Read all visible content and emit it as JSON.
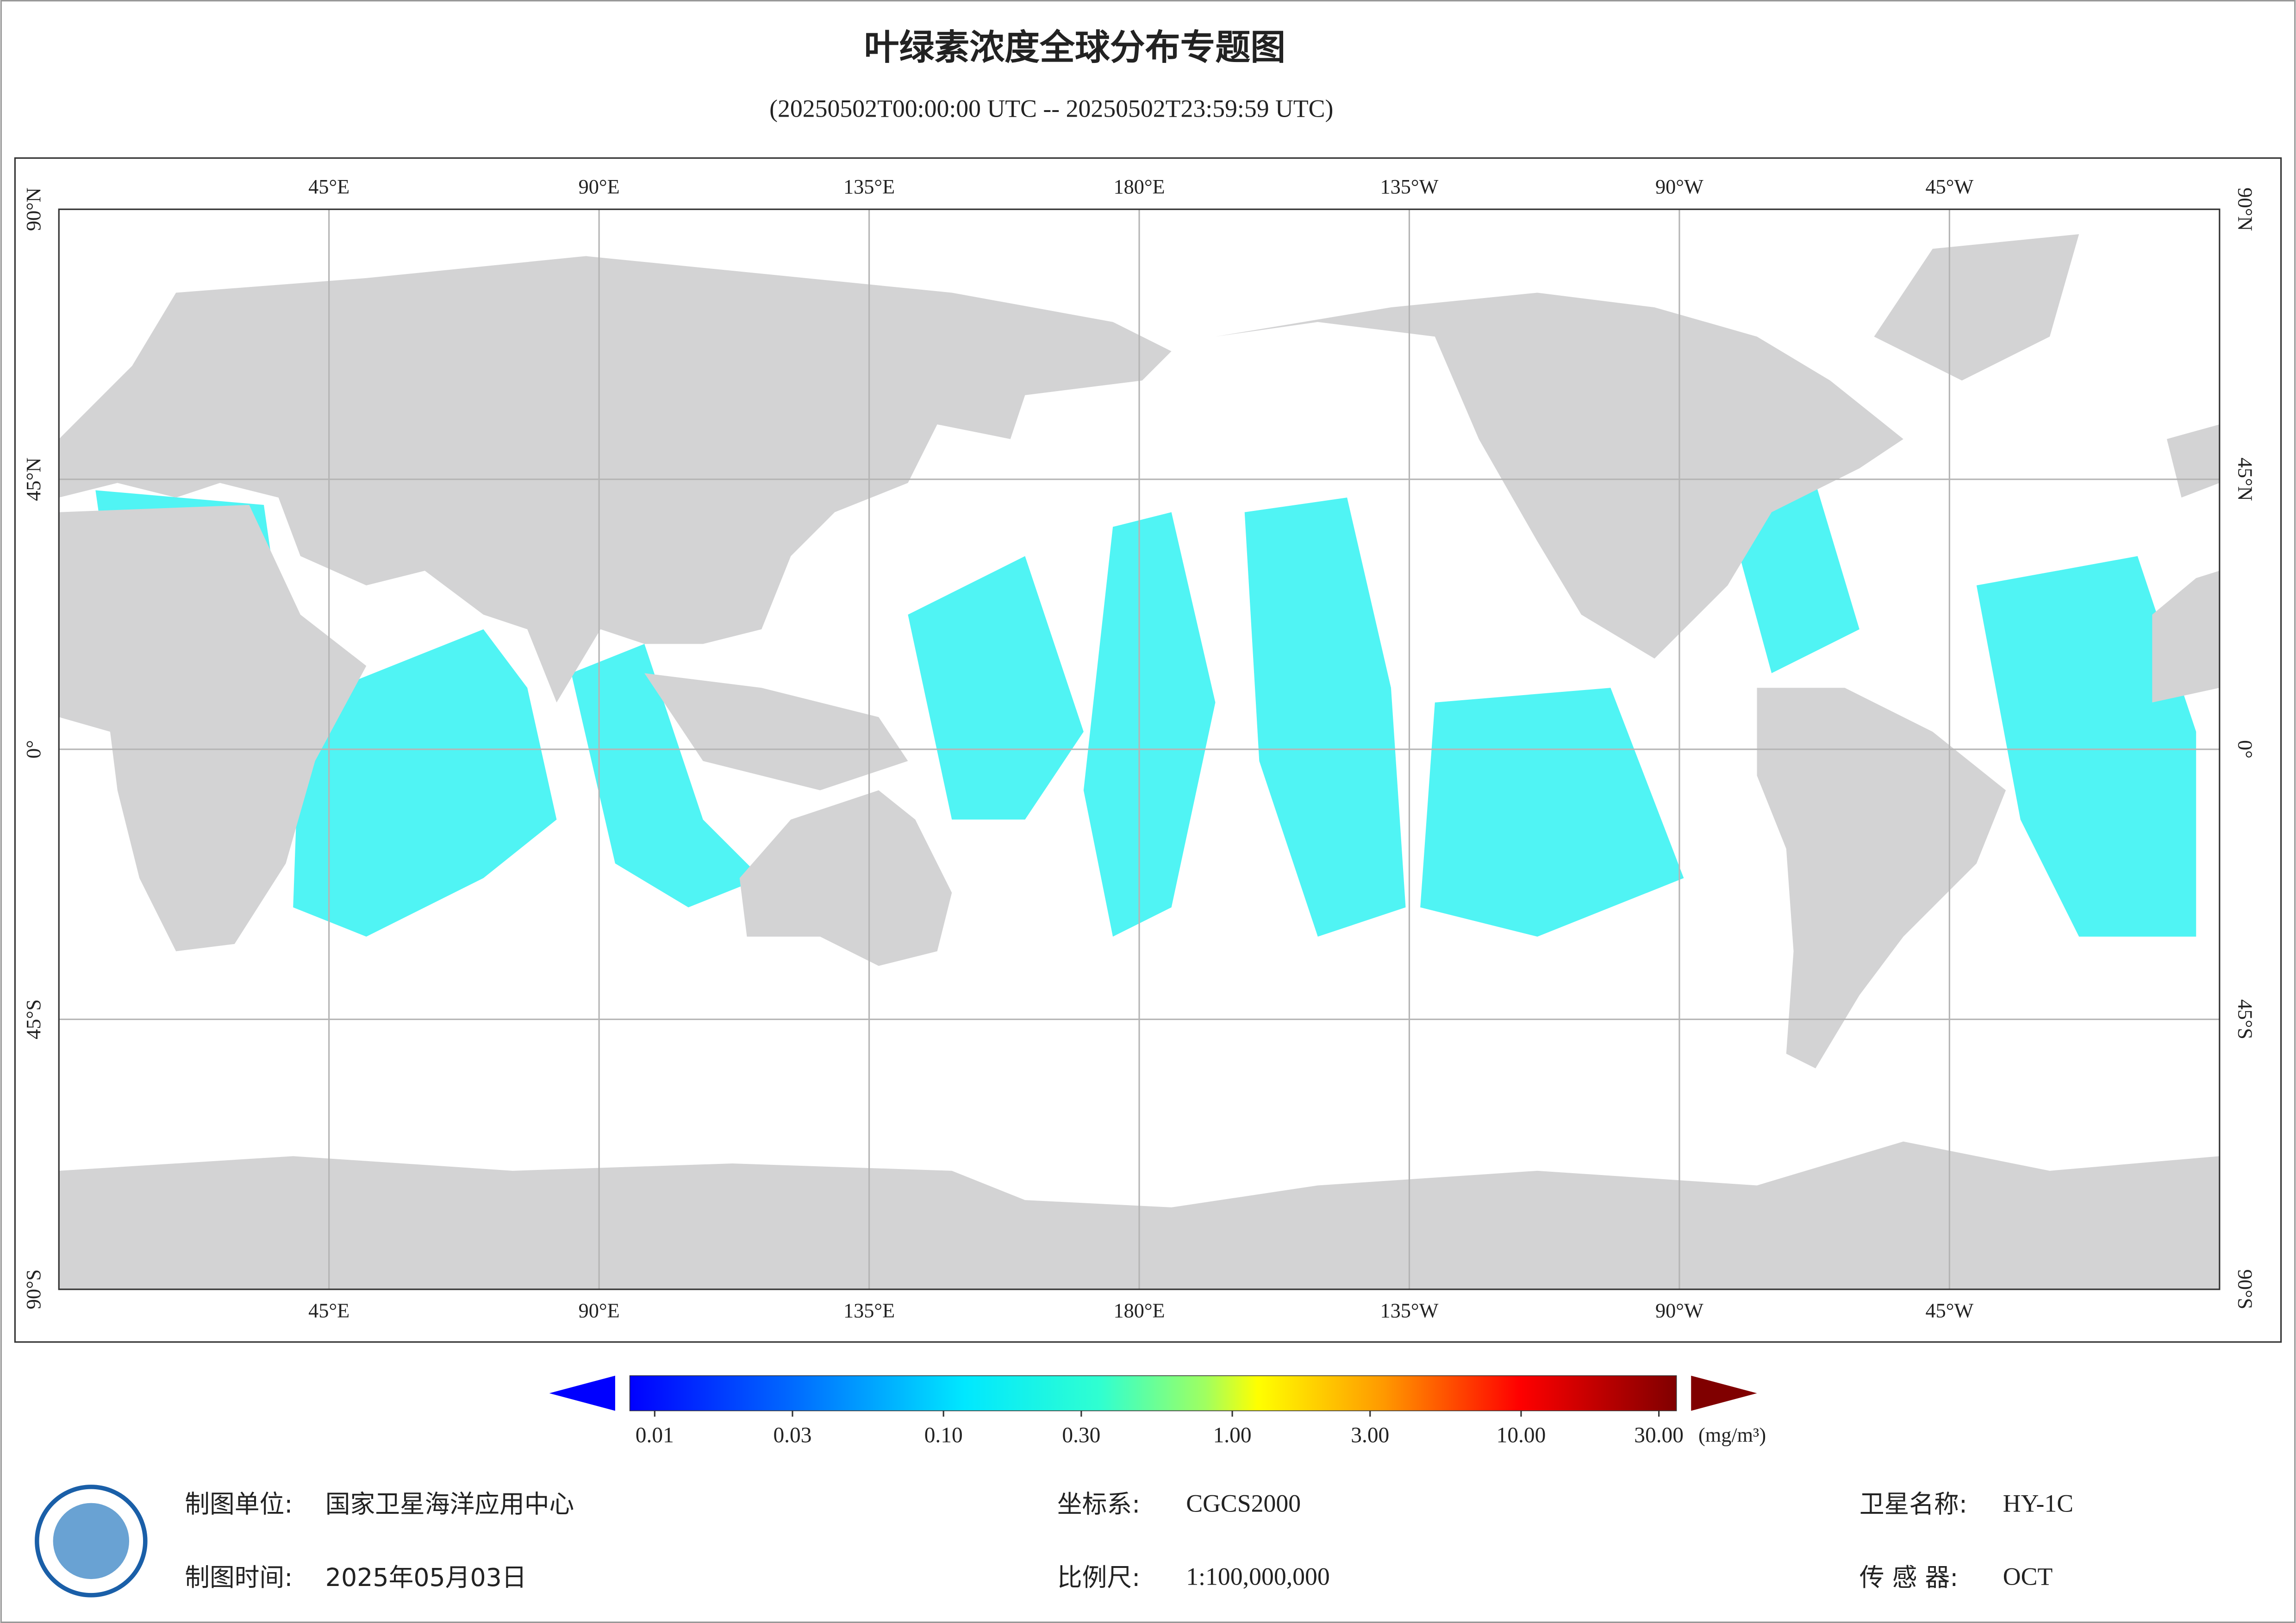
{
  "title": "叶绿素浓度全球分布专题图",
  "subtitle": "(20250502T00:00:00 UTC -- 20250502T23:59:59 UTC)",
  "map": {
    "xlim": [
      0,
      360
    ],
    "ylim": [
      -90,
      90
    ],
    "lon_ticks": [
      {
        "value": 45,
        "label": "45°E"
      },
      {
        "value": 90,
        "label": "90°E"
      },
      {
        "value": 135,
        "label": "135°E"
      },
      {
        "value": 180,
        "label": "180°E"
      },
      {
        "value": 225,
        "label": "135°W"
      },
      {
        "value": 270,
        "label": "90°W"
      },
      {
        "value": 315,
        "label": "45°W"
      }
    ],
    "lat_ticks": [
      {
        "value": 90,
        "label": "90°N"
      },
      {
        "value": 45,
        "label": "45°N"
      },
      {
        "value": 0,
        "label": "0°"
      },
      {
        "value": -45,
        "label": "45°S"
      },
      {
        "value": -90,
        "label": "90°S"
      }
    ],
    "grid": true
  },
  "colorbar": {
    "log_scale": true,
    "lim": [
      0.01,
      30
    ],
    "ticks": [
      {
        "value": 0.01,
        "label": "0.01"
      },
      {
        "value": 0.03,
        "label": "0.03"
      },
      {
        "value": 0.1,
        "label": "0.10"
      },
      {
        "value": 0.3,
        "label": "0.30"
      },
      {
        "value": 1,
        "label": "1.00"
      },
      {
        "value": 3,
        "label": "3.00"
      },
      {
        "value": 10,
        "label": "10.00"
      },
      {
        "value": 30,
        "label": "30.00"
      }
    ],
    "unit": "(mg/m³)"
  },
  "footer": {
    "producer_label": "制图单位:",
    "producer": "国家卫星海洋应用中心",
    "date_label": "制图时间:",
    "date": "2025年05月03日",
    "crs_label": "坐标系:",
    "crs": "CGCS2000",
    "scale_label": "比例尺:",
    "scale": "1:100,000,000",
    "satellite_label": "卫星名称:",
    "satellite": "HY-1C",
    "sensor_label": "传 感 器:",
    "sensor": "OCT"
  }
}
